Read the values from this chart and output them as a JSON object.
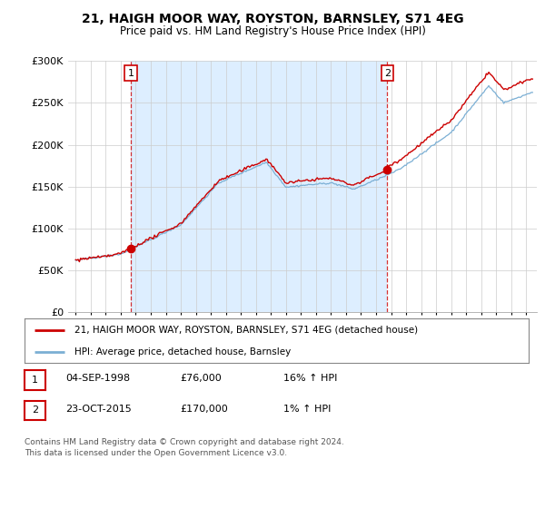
{
  "title": "21, HAIGH MOOR WAY, ROYSTON, BARNSLEY, S71 4EG",
  "subtitle": "Price paid vs. HM Land Registry's House Price Index (HPI)",
  "ylim": [
    0,
    300000
  ],
  "yticks": [
    0,
    50000,
    100000,
    150000,
    200000,
    250000,
    300000
  ],
  "ytick_labels": [
    "£0",
    "£50K",
    "£100K",
    "£150K",
    "£200K",
    "£250K",
    "£300K"
  ],
  "sale1_year": 1998,
  "sale1_month": 9,
  "sale1_price": 76000,
  "sale2_year": 2015,
  "sale2_month": 10,
  "sale2_price": 170000,
  "red_line_color": "#cc0000",
  "blue_line_color": "#7bafd4",
  "fill_color": "#ddeeff",
  "vline_color": "#cc0000",
  "grid_color": "#cccccc",
  "bg_color": "#ffffff",
  "legend_label_red": "21, HAIGH MOOR WAY, ROYSTON, BARNSLEY, S71 4EG (detached house)",
  "legend_label_blue": "HPI: Average price, detached house, Barnsley",
  "table_row1": [
    "1",
    "04-SEP-1998",
    "£76,000",
    "16% ↑ HPI"
  ],
  "table_row2": [
    "2",
    "23-OCT-2015",
    "£170,000",
    "1% ↑ HPI"
  ],
  "footnote": "Contains HM Land Registry data © Crown copyright and database right 2024.\nThis data is licensed under the Open Government Licence v3.0.",
  "xstart_year": 1995,
  "xend_year": 2025
}
